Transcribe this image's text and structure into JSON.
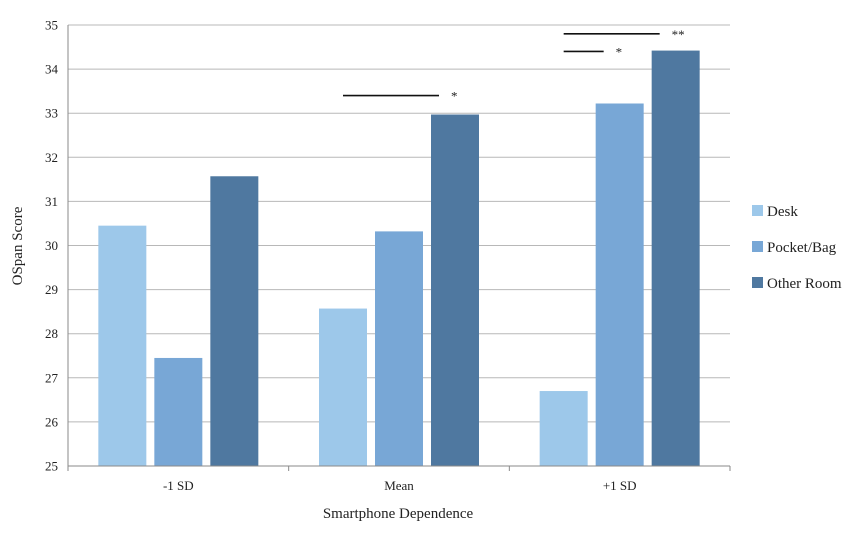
{
  "chart_data": {
    "type": "bar",
    "title": "",
    "xlabel": "Smartphone Dependence",
    "ylabel": "OSpan Score",
    "ylim": [
      25,
      35
    ],
    "yticks": [
      25,
      26,
      27,
      28,
      29,
      30,
      31,
      32,
      33,
      34,
      35
    ],
    "grid": true,
    "legend_position": "right",
    "categories": [
      "-1 SD",
      "Mean",
      "+1 SD"
    ],
    "series": [
      {
        "name": "Desk",
        "values": [
          30.45,
          28.57,
          26.7
        ],
        "color": "#9dc8ea"
      },
      {
        "name": "Pocket/Bag",
        "values": [
          27.45,
          30.32,
          33.22
        ],
        "color": "#78a7d6"
      },
      {
        "name": "Other Room",
        "values": [
          31.57,
          32.97,
          34.42
        ],
        "color": "#4f78a0"
      }
    ],
    "significance": [
      {
        "category": "Mean",
        "from_series": "Desk",
        "to_series": "Other Room",
        "y": 33.4,
        "label": "*"
      },
      {
        "category": "+1 SD",
        "from_series": "Desk",
        "to_series": "Other Room",
        "y": 34.8,
        "label": "**"
      },
      {
        "category": "+1 SD",
        "from_series": "Desk",
        "to_series": "Pocket/Bag",
        "y": 34.4,
        "label": "*"
      }
    ]
  }
}
